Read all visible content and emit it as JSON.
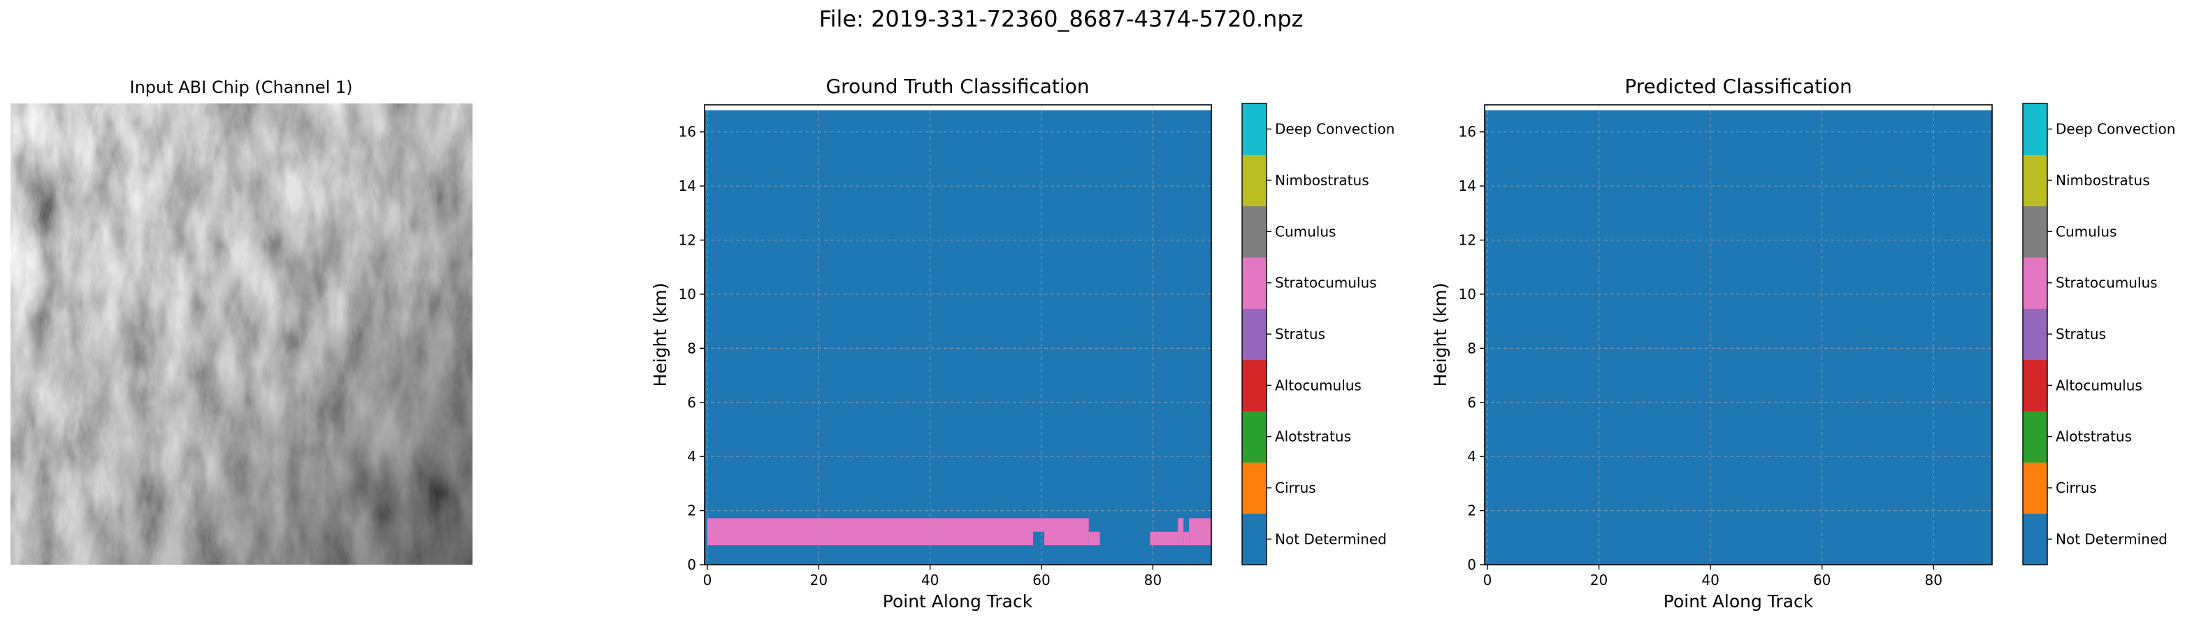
{
  "figure": {
    "suptitle": "File: 2019-331-72360_8687-4374-5720.npz"
  },
  "chart_data": [
    {
      "type": "image",
      "title": "Input ABI Chip (Channel 1)",
      "colormap": "gray",
      "description_of_content": "grayscale satellite reflectance chip"
    },
    {
      "type": "heatmap",
      "title": "Ground Truth Classification",
      "xlabel": "Point Along Track",
      "ylabel": "Height (km)",
      "xlim": [
        -0.5,
        90.5
      ],
      "ylim": [
        0,
        17
      ],
      "data_ylim": [
        0,
        16.8
      ],
      "xticks": [
        0,
        20,
        40,
        60,
        80
      ],
      "yticks": [
        0,
        2,
        4,
        6,
        8,
        10,
        12,
        14,
        16
      ],
      "grid": true,
      "background_class": "Not Determined",
      "regions": [
        {
          "class": "Stratocumulus",
          "x_start": 0,
          "x_end": 58.5,
          "y_start": 0.72,
          "y_end": 1.72
        },
        {
          "class": "Stratocumulus",
          "x_start": 58.5,
          "x_end": 60.5,
          "y_start": 1.22,
          "y_end": 1.72
        },
        {
          "class": "Stratocumulus",
          "x_start": 60.5,
          "x_end": 68.5,
          "y_start": 0.72,
          "y_end": 1.72
        },
        {
          "class": "Stratocumulus",
          "x_start": 68.5,
          "x_end": 70.5,
          "y_start": 0.72,
          "y_end": 1.22
        },
        {
          "class": "Stratocumulus",
          "x_start": 79.5,
          "x_end": 84.5,
          "y_start": 0.72,
          "y_end": 1.22
        },
        {
          "class": "Stratocumulus",
          "x_start": 84.5,
          "x_end": 85.5,
          "y_start": 0.72,
          "y_end": 1.72
        },
        {
          "class": "Stratocumulus",
          "x_start": 85.5,
          "x_end": 86.5,
          "y_start": 0.72,
          "y_end": 1.22
        },
        {
          "class": "Stratocumulus",
          "x_start": 86.5,
          "x_end": 90.5,
          "y_start": 0.72,
          "y_end": 1.72
        }
      ]
    },
    {
      "type": "heatmap",
      "title": "Predicted Classification",
      "xlabel": "Point Along Track",
      "ylabel": "Height (km)",
      "xlim": [
        -0.5,
        90.5
      ],
      "ylim": [
        0,
        17
      ],
      "data_ylim": [
        0,
        16.8
      ],
      "xticks": [
        0,
        20,
        40,
        60,
        80
      ],
      "yticks": [
        0,
        2,
        4,
        6,
        8,
        10,
        12,
        14,
        16
      ],
      "grid": true,
      "background_class": "Not Determined",
      "regions": []
    }
  ],
  "legend_classes": [
    {
      "label": "Not Determined",
      "color": "#1f77b4"
    },
    {
      "label": "Cirrus",
      "color": "#ff7f0e"
    },
    {
      "label": "Alotstratus",
      "color": "#2ca02c"
    },
    {
      "label": "Altocumulus",
      "color": "#d62728"
    },
    {
      "label": "Stratus",
      "color": "#9467bd"
    },
    {
      "label": "Stratocumulus",
      "color": "#e377c2"
    },
    {
      "label": "Cumulus",
      "color": "#7f7f7f"
    },
    {
      "label": "Nimbostratus",
      "color": "#bcbd22"
    },
    {
      "label": "Deep Convection",
      "color": "#17becf"
    }
  ]
}
